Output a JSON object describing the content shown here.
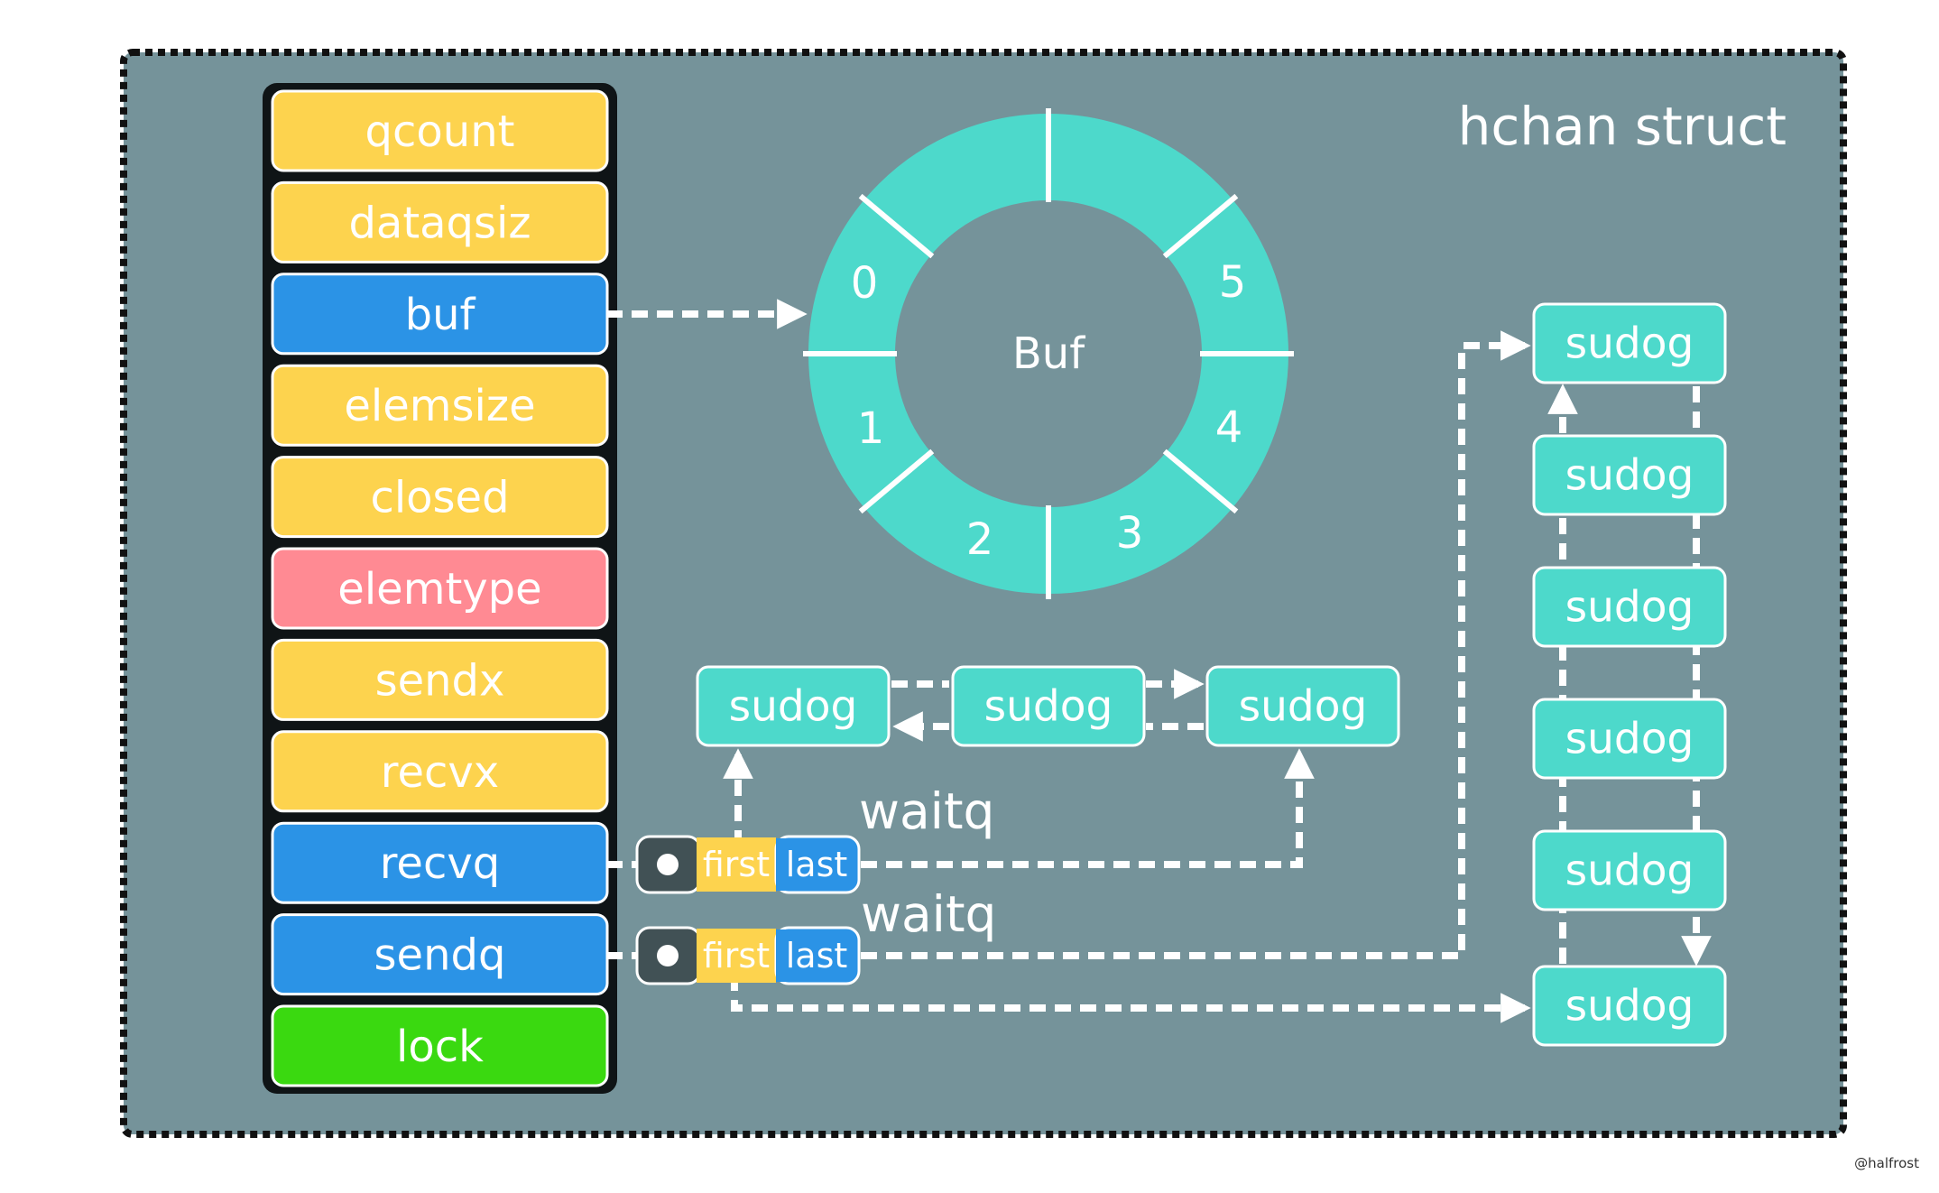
{
  "title": "hchan struct",
  "watermark": "@halfrost",
  "colors": {
    "frame_bg": "#75939A",
    "yellow": "#FDD34E",
    "blue": "#2B93E6",
    "pink": "#FF8A93",
    "green": "#3AD910",
    "teal": "#4DD9CB",
    "pointer_dark": "#415155"
  },
  "fields": [
    {
      "name": "qcount",
      "color": "yellow"
    },
    {
      "name": "dataqsiz",
      "color": "yellow"
    },
    {
      "name": "buf",
      "color": "blue"
    },
    {
      "name": "elemsize",
      "color": "yellow"
    },
    {
      "name": "closed",
      "color": "yellow"
    },
    {
      "name": "elemtype",
      "color": "pink"
    },
    {
      "name": "sendx",
      "color": "yellow"
    },
    {
      "name": "recvx",
      "color": "yellow"
    },
    {
      "name": "recvq",
      "color": "blue"
    },
    {
      "name": "sendq",
      "color": "blue"
    },
    {
      "name": "lock",
      "color": "green"
    }
  ],
  "buffer": {
    "label": "Buf",
    "slots": [
      "0",
      "1",
      "2",
      "3",
      "4",
      "5"
    ]
  },
  "waitq": {
    "label": "waitq",
    "first_label": "first",
    "last_label": "last"
  },
  "sudog_label": "sudog"
}
